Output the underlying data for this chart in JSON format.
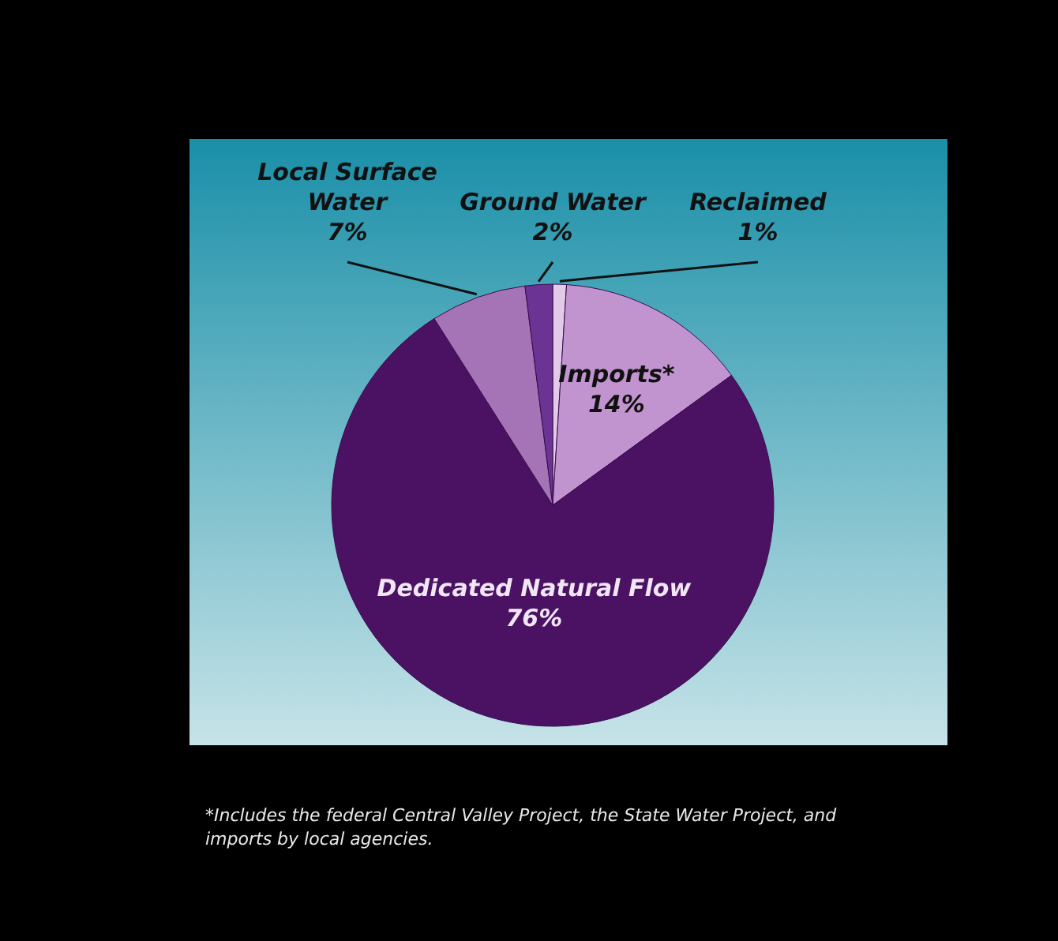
{
  "chart_data": {
    "type": "pie",
    "categories": [
      "Reclaimed",
      "Imports*",
      "Dedicated Natural Flow",
      "Local Surface Water",
      "Ground Water"
    ],
    "values": [
      1,
      14,
      76,
      7,
      2
    ],
    "value_labels": [
      "1%",
      "14%",
      "76%",
      "7%",
      "2%"
    ],
    "colors": [
      "#e2cbe9",
      "#c194cf",
      "#4b1263",
      "#a474b6",
      "#6b3393"
    ],
    "annotations": [
      "*Includes the federal Central Valley Project, the State Water Project, and imports by local agencies."
    ]
  }
}
